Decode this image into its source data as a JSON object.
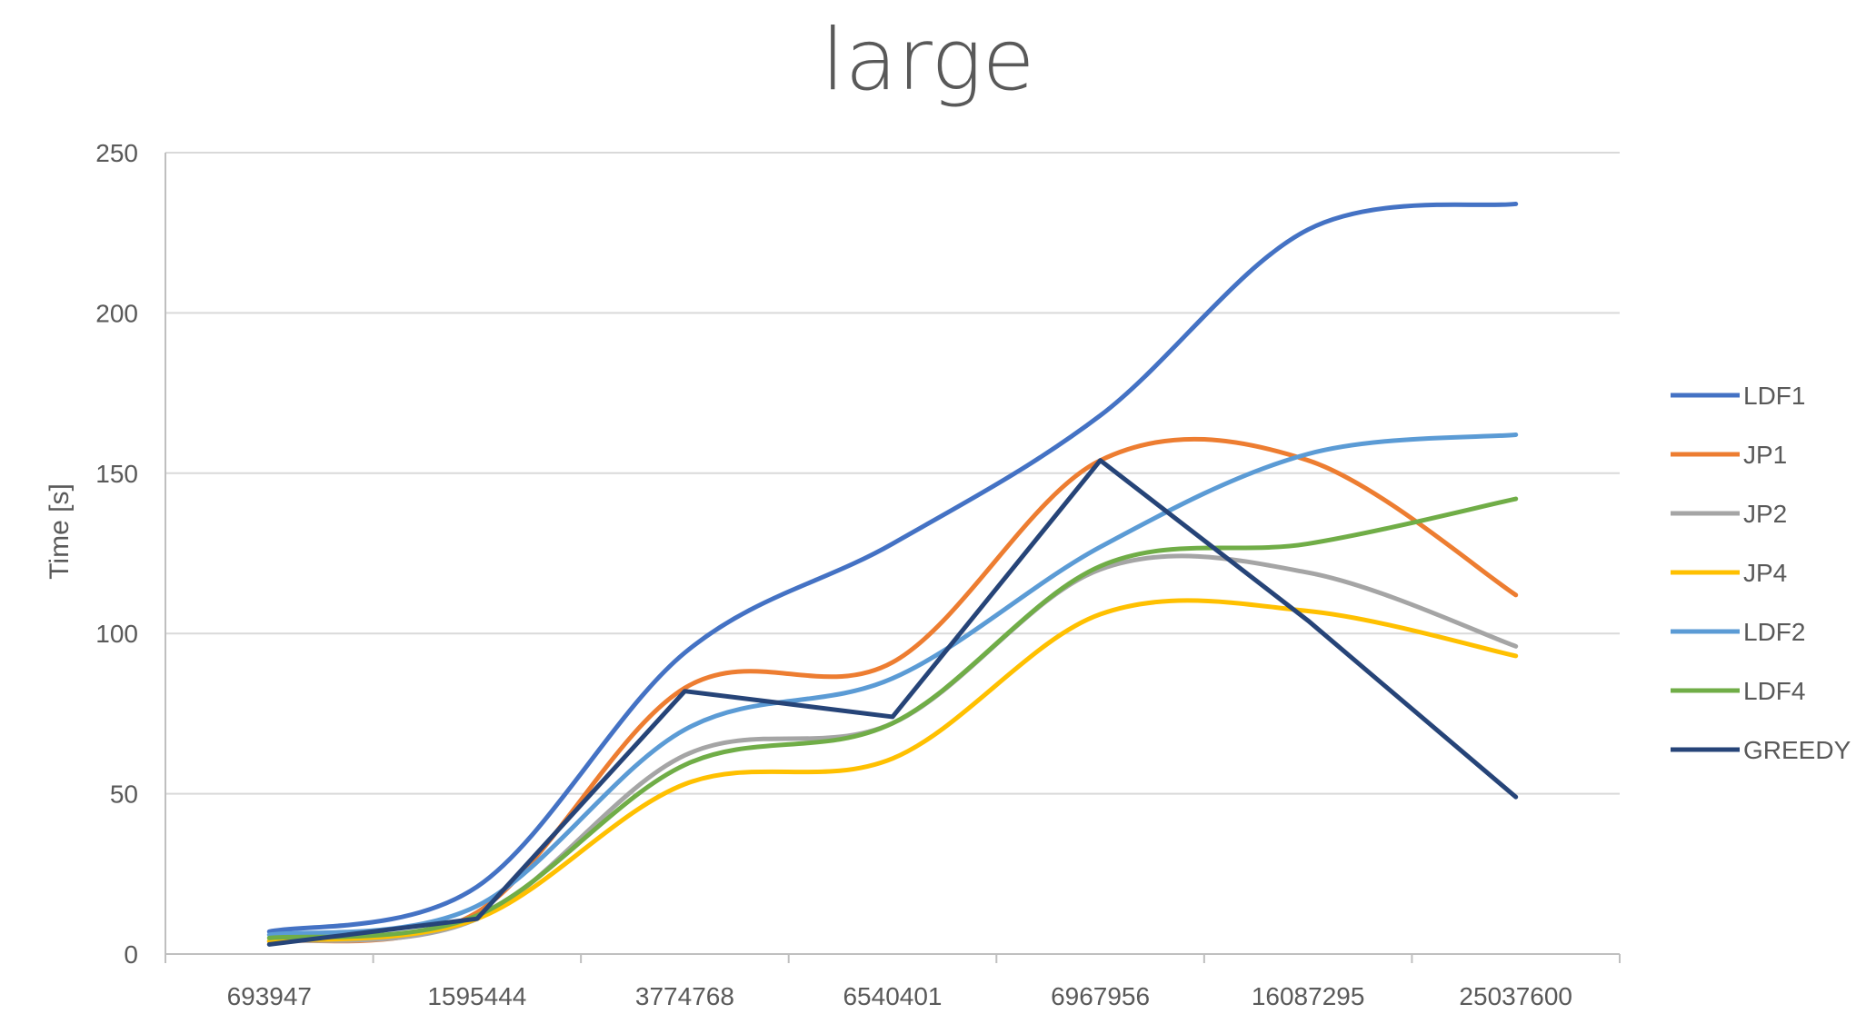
{
  "chart_data": {
    "type": "line",
    "title": "large",
    "xlabel": "",
    "ylabel": "Time [s]",
    "categories": [
      "693947",
      "1595444",
      "3774768",
      "6540401",
      "6967956",
      "16087295",
      "25037600"
    ],
    "ylim": [
      0,
      250
    ],
    "yticks": [
      "0",
      "50",
      "100",
      "150",
      "200",
      "250"
    ],
    "grid": true,
    "legend_position": "right",
    "series": [
      {
        "name": "LDF1",
        "color": "#4472C4",
        "smooth": true,
        "values": [
          7,
          21,
          94,
          128,
          168,
          226,
          234
        ]
      },
      {
        "name": "JP1",
        "color": "#ED7D31",
        "smooth": true,
        "values": [
          4,
          13,
          83,
          91,
          154,
          154,
          112
        ]
      },
      {
        "name": "JP2",
        "color": "#A5A5A5",
        "smooth": true,
        "values": [
          4,
          11,
          62,
          72,
          120,
          119,
          96
        ]
      },
      {
        "name": "JP4",
        "color": "#FFC000",
        "smooth": true,
        "values": [
          4,
          11,
          53,
          61,
          106,
          107,
          93
        ]
      },
      {
        "name": "LDF2",
        "color": "#5B9BD5",
        "smooth": true,
        "values": [
          6,
          15,
          70,
          86,
          127,
          156,
          162
        ]
      },
      {
        "name": "LDF4",
        "color": "#70AD47",
        "smooth": true,
        "values": [
          5,
          12,
          59,
          72,
          121,
          128,
          142
        ]
      },
      {
        "name": "GREEDY",
        "color": "#264478",
        "smooth": false,
        "values": [
          3,
          11,
          82,
          74,
          154,
          104,
          49
        ]
      }
    ]
  }
}
